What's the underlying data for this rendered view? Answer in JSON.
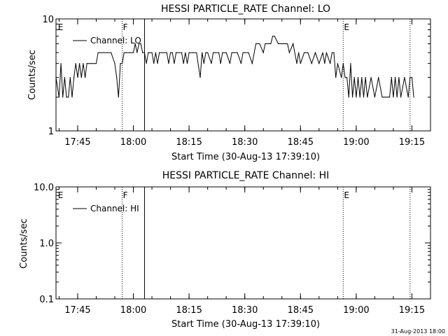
{
  "footer": {
    "timestamp": "31-Aug-2013 18:00"
  },
  "chart_data": [
    {
      "type": "line",
      "title": "HESSI PARTICLE_RATE Channel: LO",
      "xlabel": "Start Time (30-Aug-13 17:39:10)",
      "ylabel": "Counts/sec",
      "yscale": "log",
      "ylim": [
        1,
        10
      ],
      "yticks": [
        "1",
        "10"
      ],
      "xlim": [
        "17:39:10",
        "19:20:00"
      ],
      "xticks": [
        "17:45",
        "18:00",
        "18:15",
        "18:30",
        "18:45",
        "19:00",
        "19:15"
      ],
      "legend": {
        "placement": "top-left",
        "line_label": "Channel: LO"
      },
      "markers": [
        {
          "time": "17:39:30",
          "label": "E",
          "style": "none"
        },
        {
          "time": "17:57:00",
          "label": "F",
          "style": "dotted"
        },
        {
          "time": "18:03:00",
          "label": "",
          "style": "solid"
        },
        {
          "time": "18:56:30",
          "label": "E",
          "style": "dotted"
        },
        {
          "time": "19:14:30",
          "label": "",
          "style": "dotted"
        }
      ],
      "series": [
        {
          "x": [
            "17:39:10",
            "17:40:00",
            "17:40:30",
            "17:41:00",
            "17:41:30",
            "17:42:00",
            "17:42:30",
            "17:43:00",
            "17:43:30",
            "17:44:00",
            "17:44:30",
            "17:45:00",
            "17:45:30",
            "17:46:00",
            "17:46:30",
            "17:47:00",
            "17:47:30",
            "17:48:00",
            "17:48:30",
            "17:49:00",
            "17:49:30",
            "17:50:00",
            "17:50:30",
            "17:51:00",
            "17:52:00",
            "17:53:00",
            "17:54:00",
            "17:55:00",
            "17:55:30",
            "17:56:00",
            "17:56:30",
            "17:57:00",
            "17:57:30",
            "17:58:00",
            "17:59:00",
            "18:00:00",
            "18:00:30",
            "18:01:00",
            "18:01:30",
            "18:02:00",
            "18:02:30",
            "18:03:00",
            "18:03:30",
            "18:04:00",
            "18:04:30",
            "18:05:00",
            "18:05:30",
            "18:06:00",
            "18:06:30",
            "18:07:00",
            "18:08:00",
            "18:09:00",
            "18:09:30",
            "18:10:00",
            "18:10:30",
            "18:11:00",
            "18:11:30",
            "18:12:00",
            "18:13:00",
            "18:13:30",
            "18:14:00",
            "18:14:30",
            "18:15:00",
            "18:16:00",
            "18:17:00",
            "18:18:00",
            "18:18:30",
            "18:19:00",
            "18:19:30",
            "18:20:00",
            "18:21:00",
            "18:21:30",
            "18:22:00",
            "18:23:00",
            "18:23:30",
            "18:24:00",
            "18:25:00",
            "18:26:00",
            "18:26:30",
            "18:27:00",
            "18:28:00",
            "18:29:00",
            "18:29:30",
            "18:30:00",
            "18:31:00",
            "18:32:00",
            "18:33:00",
            "18:33:30",
            "18:34:00",
            "18:35:00",
            "18:35:30",
            "18:36:00",
            "18:37:00",
            "18:37:30",
            "18:38:00",
            "18:39:00",
            "18:40:00",
            "18:41:00",
            "18:41:30",
            "18:42:00",
            "18:43:00",
            "18:44:00",
            "18:44:30",
            "18:45:00",
            "18:46:00",
            "18:47:00",
            "18:48:00",
            "18:49:00",
            "18:50:00",
            "18:51:00",
            "18:51:30",
            "18:52:00",
            "18:53:00",
            "18:53:30",
            "18:54:00",
            "18:54:30",
            "18:55:00",
            "18:56:00",
            "18:56:30",
            "18:57:00",
            "18:57:30",
            "18:58:00",
            "18:58:30",
            "18:59:00",
            "18:59:30",
            "19:00:00",
            "19:00:30",
            "19:01:00",
            "19:01:30",
            "19:02:00",
            "19:02:30",
            "19:03:00",
            "19:04:00",
            "19:05:00",
            "19:06:00",
            "19:07:00",
            "19:07:30",
            "19:08:00",
            "19:08:30",
            "19:09:00",
            "19:09:30",
            "19:10:00",
            "19:10:30",
            "19:11:00",
            "19:11:30",
            "19:12:00",
            "19:13:00",
            "19:14:00",
            "19:14:30",
            "19:15:00",
            "19:15:30"
          ],
          "y": [
            3,
            2,
            4,
            2,
            3,
            2,
            2,
            3,
            2,
            3,
            4,
            3,
            4,
            3,
            4,
            3,
            4,
            4,
            4,
            4,
            4,
            4,
            5,
            5,
            5,
            5,
            5,
            4,
            3,
            2,
            4,
            4,
            5,
            5,
            5,
            5,
            6,
            5,
            6,
            6,
            5,
            5,
            4,
            5,
            5,
            5,
            4,
            5,
            4,
            5,
            5,
            5,
            4,
            5,
            5,
            4,
            5,
            5,
            5,
            4,
            5,
            4,
            5,
            5,
            5,
            3,
            5,
            4,
            5,
            5,
            4,
            5,
            5,
            5,
            4,
            5,
            5,
            4,
            5,
            5,
            5,
            4,
            5,
            5,
            5,
            4,
            6,
            6,
            6,
            5,
            6,
            6,
            6,
            7,
            7,
            6,
            6,
            6,
            6,
            5,
            6,
            4,
            5,
            4,
            5,
            5,
            4,
            5,
            4,
            5,
            4,
            5,
            4,
            5,
            5,
            3,
            4,
            3,
            4,
            3,
            3,
            2,
            4,
            2,
            3,
            2,
            3,
            2,
            3,
            2,
            3,
            2,
            3,
            2,
            3,
            2,
            2,
            2,
            2,
            2,
            3,
            2,
            3,
            2,
            3,
            2,
            3,
            2,
            3,
            3,
            2
          ]
        }
      ]
    },
    {
      "type": "line",
      "title": "HESSI PARTICLE_RATE Channel: HI",
      "xlabel": "Start Time (30-Aug-13 17:39:10)",
      "ylabel": "Counts/sec",
      "yscale": "log",
      "ylim": [
        0.1,
        10
      ],
      "yticks": [
        "0.1",
        "1.0",
        "10.0"
      ],
      "xlim": [
        "17:39:10",
        "19:20:00"
      ],
      "xticks": [
        "17:45",
        "18:00",
        "18:15",
        "18:30",
        "18:45",
        "19:00",
        "19:15"
      ],
      "legend": {
        "placement": "top-left",
        "line_label": "Channel: HI"
      },
      "markers": [
        {
          "time": "17:39:30",
          "label": "E",
          "style": "none"
        },
        {
          "time": "17:57:00",
          "label": "F",
          "style": "dotted"
        },
        {
          "time": "18:03:00",
          "label": "",
          "style": "solid"
        },
        {
          "time": "18:56:30",
          "label": "E",
          "style": "dotted"
        },
        {
          "time": "19:14:30",
          "label": "",
          "style": "dotted"
        }
      ],
      "series": []
    }
  ]
}
